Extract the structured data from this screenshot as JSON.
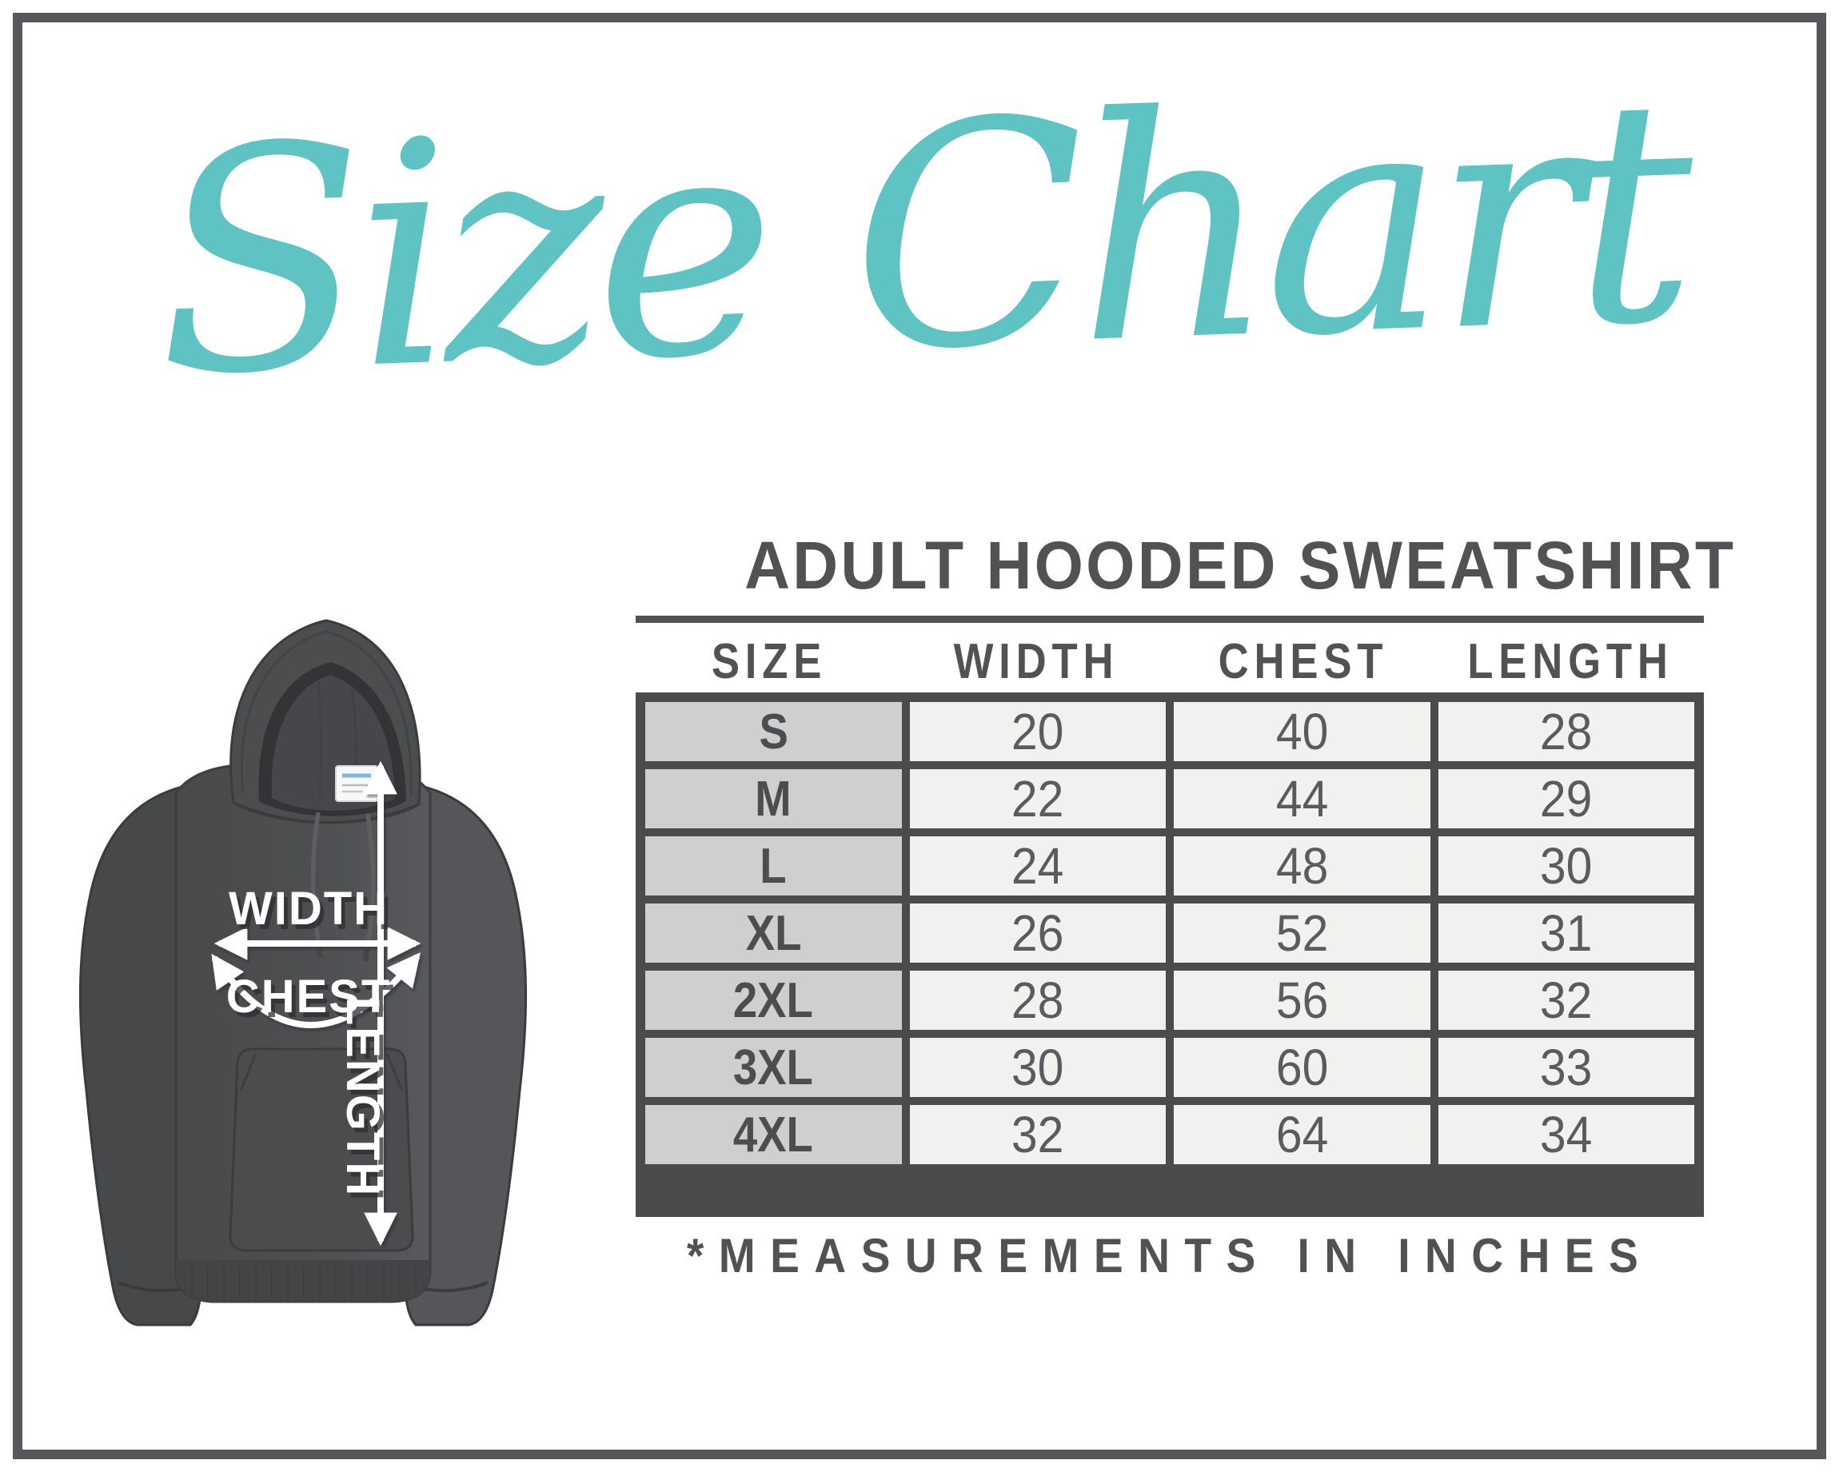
{
  "title": {
    "text": "Size Chart"
  },
  "diagram": {
    "labels": {
      "width": "WIDTH",
      "chest": "CHEST",
      "length": "LENGTH"
    }
  },
  "table": {
    "heading": "ADULT HOODED SWEATSHIRT",
    "footnote": "*MEASUREMENTS IN INCHES"
  },
  "chart_data": {
    "type": "table",
    "title": "ADULT HOODED SWEATSHIRT",
    "columns": [
      "SIZE",
      "WIDTH",
      "CHEST",
      "LENGTH"
    ],
    "rows": [
      [
        "S",
        20,
        40,
        28
      ],
      [
        "M",
        22,
        44,
        29
      ],
      [
        "L",
        24,
        48,
        30
      ],
      [
        "XL",
        26,
        52,
        31
      ],
      [
        "2XL",
        28,
        56,
        32
      ],
      [
        "3XL",
        30,
        60,
        33
      ],
      [
        "4XL",
        32,
        64,
        34
      ]
    ],
    "units": "inches",
    "note": "*MEASUREMENTS IN INCHES"
  },
  "colors": {
    "accent_teal": "#5ec3c2",
    "frame_gray": "#55575a",
    "table_border": "#4a4b4d",
    "size_column_bg": "#cfcfcf",
    "value_cell_bg": "#f1f1f0",
    "text_dark": "#505254",
    "hoodie_gray": "#4c4d4f"
  }
}
